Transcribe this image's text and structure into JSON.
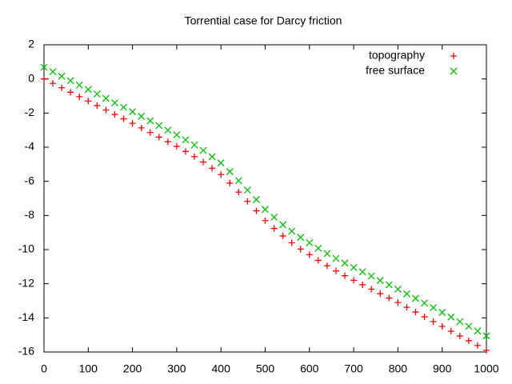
{
  "chart_data": {
    "type": "scatter",
    "title": "Torrential case for Darcy friction",
    "x": [
      0,
      20,
      40,
      60,
      80,
      100,
      120,
      140,
      160,
      180,
      200,
      220,
      240,
      260,
      280,
      300,
      320,
      340,
      360,
      380,
      400,
      420,
      440,
      460,
      480,
      500,
      520,
      540,
      560,
      580,
      600,
      620,
      640,
      660,
      680,
      700,
      720,
      740,
      760,
      780,
      800,
      820,
      840,
      860,
      880,
      900,
      920,
      940,
      960,
      980,
      1000
    ],
    "series": [
      {
        "name": "topography",
        "color": "#ff0000",
        "marker": "plus",
        "values": [
          0,
          -0.26,
          -0.52,
          -0.78,
          -1.04,
          -1.3,
          -1.56,
          -1.82,
          -2.08,
          -2.34,
          -2.6,
          -2.87,
          -3.14,
          -3.41,
          -3.68,
          -3.95,
          -4.25,
          -4.55,
          -4.87,
          -5.23,
          -5.6,
          -6.1,
          -6.63,
          -7.17,
          -7.73,
          -8.3,
          -8.76,
          -9.2,
          -9.6,
          -9.97,
          -10.3,
          -10.63,
          -10.95,
          -11.25,
          -11.53,
          -11.8,
          -12.06,
          -12.32,
          -12.58,
          -12.84,
          -13.1,
          -13.38,
          -13.66,
          -13.94,
          -14.22,
          -14.5,
          -14.78,
          -15.06,
          -15.34,
          -15.62,
          -15.9
        ]
      },
      {
        "name": "free surface",
        "color": "#00c000",
        "marker": "cross",
        "values": [
          0.68,
          0.42,
          0.16,
          -0.1,
          -0.36,
          -0.62,
          -0.88,
          -1.14,
          -1.4,
          -1.66,
          -1.92,
          -2.19,
          -2.46,
          -2.73,
          -3.0,
          -3.27,
          -3.57,
          -3.87,
          -4.19,
          -4.55,
          -4.92,
          -5.43,
          -5.96,
          -6.51,
          -7.07,
          -7.65,
          -8.1,
          -8.54,
          -8.92,
          -9.28,
          -9.6,
          -9.92,
          -10.23,
          -10.52,
          -10.79,
          -11.05,
          -11.3,
          -11.55,
          -11.81,
          -12.06,
          -12.32,
          -12.59,
          -12.86,
          -13.13,
          -13.4,
          -13.68,
          -13.95,
          -14.22,
          -14.49,
          -14.77,
          -15.05
        ]
      }
    ],
    "xlim": [
      0,
      1000
    ],
    "xticks": [
      0,
      100,
      200,
      300,
      400,
      500,
      600,
      700,
      800,
      900,
      1000
    ],
    "ylim": [
      -16,
      2
    ],
    "yticks": [
      -16,
      -14,
      -12,
      -10,
      -8,
      -6,
      -4,
      -2,
      0,
      2
    ],
    "grid": false,
    "legend": "top-right"
  }
}
